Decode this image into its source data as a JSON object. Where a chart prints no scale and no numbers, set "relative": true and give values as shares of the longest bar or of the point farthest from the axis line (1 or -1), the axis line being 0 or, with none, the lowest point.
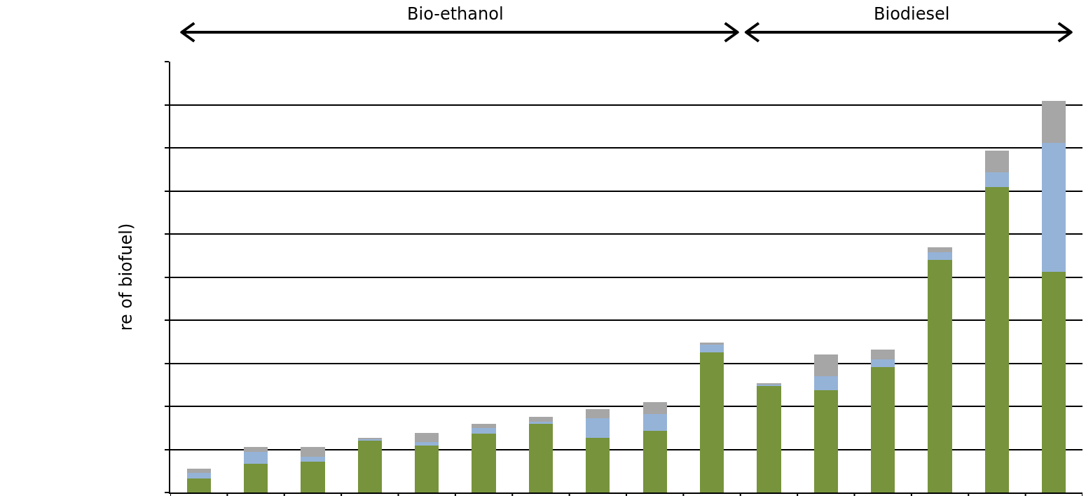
{
  "chart_data": {
    "type": "bar",
    "ylabel": "re of biofuel)",
    "annotations": [
      "Bio-ethanol",
      "Biodiesel"
    ],
    "categories": [
      null,
      null,
      null,
      null,
      null,
      null,
      null,
      null,
      null,
      null,
      null,
      null,
      null,
      null,
      null,
      null
    ],
    "stacked": true,
    "relative": true,
    "grid": "y",
    "series": [
      {
        "color": "#77933c",
        "values": [
          0.036,
          0.073,
          0.079,
          0.132,
          0.12,
          0.15,
          0.175,
          0.139,
          0.157,
          0.357,
          0.271,
          0.261,
          0.321,
          0.593,
          0.78,
          0.563
        ]
      },
      {
        "color": "#95b3d7",
        "values": [
          0.014,
          0.03,
          0.013,
          0.004,
          0.009,
          0.014,
          0.005,
          0.05,
          0.043,
          0.02,
          0.004,
          0.036,
          0.018,
          0.02,
          0.038,
          0.329
        ]
      },
      {
        "color": "#a6a6a6",
        "values": [
          0.011,
          0.013,
          0.025,
          0.004,
          0.023,
          0.011,
          0.014,
          0.023,
          0.03,
          0.005,
          0.004,
          0.055,
          0.025,
          0.013,
          0.055,
          0.108
        ]
      }
    ]
  }
}
